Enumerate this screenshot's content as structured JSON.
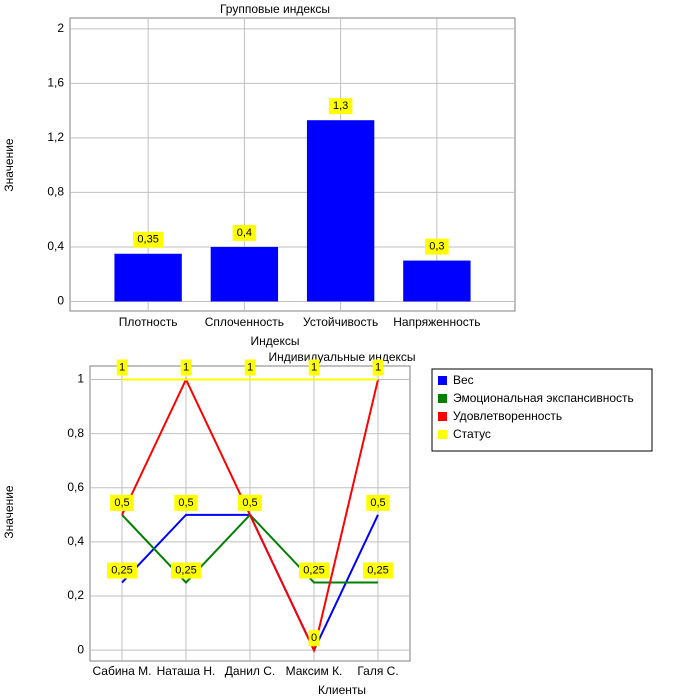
{
  "chart_data": [
    {
      "type": "bar",
      "title": "Групповые индексы",
      "x_label": "Индексы",
      "y_label": "Значение",
      "categories": [
        "Плотность",
        "Сплоченность",
        "Устойчивость",
        "Напряженность"
      ],
      "values": [
        0.35,
        0.4,
        1.33,
        0.3
      ],
      "value_labels": [
        "0,35",
        "0,4",
        "1,3",
        "0,3"
      ],
      "color": "#0000ff",
      "ylim": [
        -0.07,
        2.08
      ],
      "yticks": [
        0,
        {
          "value": 0.4,
          "label": "0,4"
        },
        {
          "value": 0.8,
          "label": "0,8"
        },
        {
          "value": 1.2,
          "label": "1,2"
        },
        {
          "value": 1.6,
          "label": "1,6"
        },
        2
      ],
      "grid": true
    },
    {
      "type": "line",
      "title": "Индивидуальные индексы",
      "x_label": "Клиенты",
      "y_label": "Значение",
      "categories": [
        "Сабина М.",
        "Наташа Н.",
        "Данил С.",
        "Максим К.",
        "Галя С."
      ],
      "series": [
        {
          "name": "Вес",
          "color": "#0000ff",
          "values": [
            0.25,
            0.5,
            0.5,
            0,
            0.5
          ],
          "value_labels": [
            "0,25",
            "0,5",
            "0,5",
            "0",
            "0,5"
          ]
        },
        {
          "name": "Эмоциональная экспансивность",
          "color": "#008000",
          "values": [
            0.5,
            0.25,
            0.5,
            0.25,
            0.25
          ],
          "value_labels": [
            "0,5",
            "0,25",
            "0,5",
            "0,25",
            "0,25"
          ]
        },
        {
          "name": "Удовлетворенность",
          "color": "#ff0000",
          "values": [
            0.5,
            1,
            0.5,
            0,
            1
          ],
          "value_labels": [
            "0,5",
            "1",
            "0,5",
            "0",
            "1"
          ]
        },
        {
          "name": "Статус",
          "color": "#ffff00",
          "values": [
            1,
            1,
            1,
            1,
            1
          ],
          "value_labels": [
            "1",
            "1",
            "1",
            "1",
            "1"
          ]
        }
      ],
      "ylim": [
        -0.04,
        1.05
      ],
      "yticks": [
        0,
        {
          "value": 0.2,
          "label": "0,2"
        },
        {
          "value": 0.4,
          "label": "0,4"
        },
        {
          "value": 0.6,
          "label": "0,6"
        },
        {
          "value": 0.8,
          "label": "0,8"
        },
        1
      ],
      "grid": true,
      "legend": "right"
    }
  ]
}
